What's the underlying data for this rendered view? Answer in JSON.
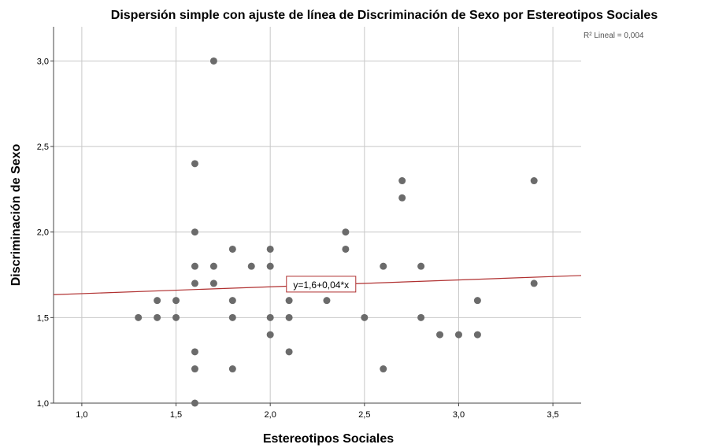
{
  "chart_data": {
    "type": "scatter",
    "title": "Dispersión simple con ajuste de línea de Discriminación de Sexo por Estereotipos Sociales",
    "xlabel": "Estereotipos Sociales",
    "ylabel": "Discriminación de Sexo",
    "xlim": [
      0.85,
      3.65
    ],
    "ylim": [
      1.0,
      3.2
    ],
    "xticks": [
      "1,0",
      "1,5",
      "2,0",
      "2,5",
      "3,0",
      "3,5"
    ],
    "xtick_values": [
      1.0,
      1.5,
      2.0,
      2.5,
      3.0,
      3.5
    ],
    "yticks": [
      "1,0",
      "1,5",
      "2,0",
      "2,5",
      "3,0"
    ],
    "ytick_values": [
      1.0,
      1.5,
      2.0,
      2.5,
      3.0
    ],
    "grid": true,
    "point_color": "#6b6b6b",
    "fit_line": {
      "intercept": 1.6,
      "slope": 0.04,
      "color": "#b03030",
      "equation_label": "y=1,6+0,04*x",
      "r2_label": "R² Lineal = 0,004"
    },
    "points": [
      [
        1.3,
        1.5
      ],
      [
        1.4,
        1.6
      ],
      [
        1.4,
        1.5
      ],
      [
        1.5,
        1.6
      ],
      [
        1.5,
        1.5
      ],
      [
        1.6,
        2.4
      ],
      [
        1.6,
        2.0
      ],
      [
        1.6,
        1.8
      ],
      [
        1.6,
        1.7
      ],
      [
        1.6,
        1.3
      ],
      [
        1.6,
        1.2
      ],
      [
        1.6,
        1.0
      ],
      [
        1.7,
        3.0
      ],
      [
        1.7,
        1.8
      ],
      [
        1.7,
        1.7
      ],
      [
        1.8,
        1.9
      ],
      [
        1.8,
        1.6
      ],
      [
        1.8,
        1.5
      ],
      [
        1.8,
        1.2
      ],
      [
        1.9,
        1.8
      ],
      [
        2.0,
        1.9
      ],
      [
        2.0,
        1.8
      ],
      [
        2.0,
        1.5
      ],
      [
        2.0,
        1.4
      ],
      [
        2.1,
        1.6
      ],
      [
        2.1,
        1.5
      ],
      [
        2.1,
        1.3
      ],
      [
        2.3,
        1.6
      ],
      [
        2.4,
        2.0
      ],
      [
        2.4,
        1.9
      ],
      [
        2.5,
        1.5
      ],
      [
        2.6,
        1.8
      ],
      [
        2.6,
        1.2
      ],
      [
        2.7,
        2.3
      ],
      [
        2.7,
        2.2
      ],
      [
        2.8,
        1.8
      ],
      [
        2.8,
        1.5
      ],
      [
        2.9,
        1.4
      ],
      [
        3.0,
        1.4
      ],
      [
        3.1,
        1.6
      ],
      [
        3.1,
        1.4
      ],
      [
        3.4,
        2.3
      ],
      [
        3.4,
        1.7
      ]
    ]
  }
}
